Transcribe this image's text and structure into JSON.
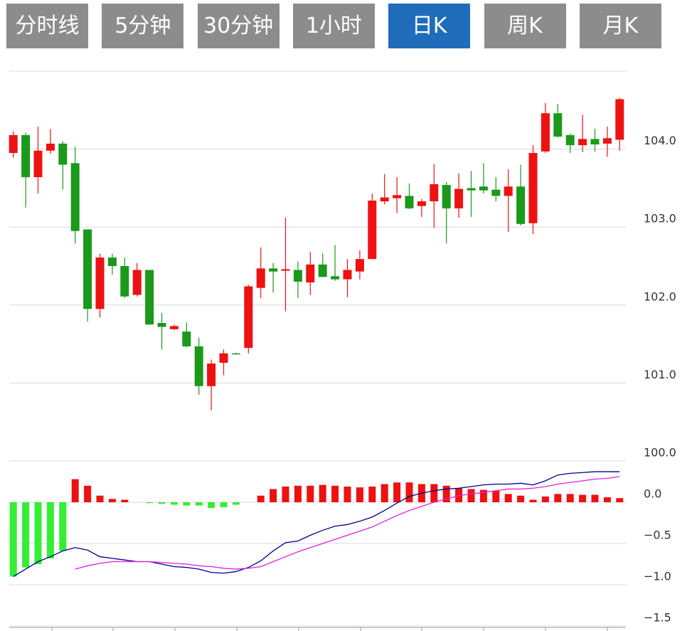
{
  "tabs": [
    "分时线",
    "5分钟",
    "30分钟",
    "1小时",
    "日K",
    "周K",
    "月K"
  ],
  "active_tab": 4,
  "chart_data": [
    {
      "type": "candlestick",
      "up_color": "#ee1111",
      "down_color": "#1a991a",
      "grid": true,
      "ylim": [
        100,
        105
      ],
      "yticks": [
        {
          "value": 100,
          "label": "100.0"
        },
        {
          "value": 101,
          "label": "101.0"
        },
        {
          "value": 102,
          "label": "102.0"
        },
        {
          "value": 103,
          "label": "103.0"
        },
        {
          "value": 104,
          "label": "104.0"
        }
      ],
      "open": [
        103.95,
        104.18,
        103.64,
        103.98,
        104.07,
        103.82,
        102.97,
        101.95,
        102.61,
        102.5,
        102.13,
        102.45,
        101.77,
        101.69,
        101.66,
        101.47,
        100.96,
        101.26,
        101.38,
        101.45,
        102.22,
        102.47,
        102.44,
        102.45,
        102.29,
        102.52,
        102.37,
        102.33,
        102.43,
        102.59,
        103.33,
        103.37,
        103.4,
        103.27,
        103.33,
        103.54,
        103.24,
        103.5,
        103.52,
        103.48,
        103.4,
        103.52,
        103.05,
        103.97,
        104.46,
        104.18,
        104.05,
        104.13,
        104.07,
        104.12
      ],
      "high": [
        104.23,
        104.21,
        104.29,
        104.26,
        104.1,
        104.03,
        102.97,
        102.66,
        102.66,
        102.61,
        102.54,
        102.45,
        101.9,
        101.75,
        101.78,
        101.58,
        101.3,
        101.43,
        101.39,
        102.26,
        102.74,
        102.54,
        103.12,
        102.56,
        102.68,
        102.66,
        102.77,
        102.59,
        102.7,
        103.43,
        103.68,
        103.64,
        103.56,
        103.36,
        103.81,
        103.58,
        103.69,
        103.72,
        103.82,
        103.64,
        103.74,
        103.8,
        104.05,
        104.59,
        104.58,
        104.2,
        104.44,
        104.26,
        104.29,
        104.66
      ],
      "low": [
        103.89,
        103.25,
        103.43,
        103.94,
        103.48,
        102.79,
        101.79,
        101.84,
        102.39,
        102.09,
        102.11,
        101.75,
        101.43,
        101.68,
        101.46,
        100.85,
        100.65,
        101.1,
        101.37,
        101.38,
        102.09,
        102.16,
        101.92,
        102.09,
        102.13,
        102.36,
        102.31,
        102.1,
        102.33,
        102.59,
        103.29,
        103.18,
        103.23,
        103.13,
        102.99,
        102.79,
        103.12,
        103.13,
        103.43,
        103.33,
        102.94,
        103.02,
        102.91,
        103.95,
        104.15,
        103.95,
        103.96,
        103.97,
        103.9,
        103.98
      ],
      "close": [
        104.18,
        103.64,
        103.98,
        104.07,
        103.8,
        102.95,
        101.95,
        102.61,
        102.5,
        102.11,
        102.45,
        101.75,
        101.72,
        101.73,
        101.47,
        100.96,
        101.25,
        101.38,
        101.37,
        102.24,
        102.47,
        102.43,
        102.46,
        102.3,
        102.52,
        102.36,
        102.33,
        102.45,
        102.59,
        103.34,
        103.38,
        103.41,
        103.24,
        103.33,
        103.55,
        103.24,
        103.49,
        103.47,
        103.47,
        103.4,
        103.52,
        103.04,
        103.95,
        104.46,
        104.16,
        104.05,
        104.13,
        104.06,
        104.14,
        104.64
      ]
    },
    {
      "type": "macd",
      "grid": true,
      "ylim": [
        -1.5,
        0.5
      ],
      "yticks": [
        {
          "value": 0,
          "label": "0.0"
        },
        {
          "value": -0.5,
          "label": "−0.5"
        },
        {
          "value": -1,
          "label": "−1.0"
        },
        {
          "value": -1.5,
          "label": "−1.5"
        }
      ],
      "bars": {
        "up_color": "#ee1111",
        "down_color": "#33ee33",
        "values": [
          -0.9,
          -0.79,
          -0.75,
          -0.68,
          -0.59,
          0.28,
          0.2,
          0.08,
          0.04,
          0.03,
          0,
          -0.01,
          -0.02,
          -0.03,
          -0.04,
          -0.04,
          -0.07,
          -0.06,
          -0.03,
          0,
          0.08,
          0.16,
          0.19,
          0.2,
          0.2,
          0.21,
          0.2,
          0.19,
          0.18,
          0.19,
          0.22,
          0.24,
          0.24,
          0.22,
          0.22,
          0.2,
          0.17,
          0.16,
          0.15,
          0.14,
          0.1,
          0.08,
          0.03,
          0.07,
          0.1,
          0.1,
          0.09,
          0.09,
          0.06,
          0.05
        ]
      },
      "lines": [
        {
          "color": "#00008b",
          "values": [
            -0.9,
            -0.81,
            -0.72,
            -0.66,
            -0.59,
            -0.55,
            -0.58,
            -0.66,
            -0.68,
            -0.7,
            -0.72,
            -0.72,
            -0.75,
            -0.78,
            -0.79,
            -0.81,
            -0.85,
            -0.86,
            -0.84,
            -0.79,
            -0.71,
            -0.59,
            -0.49,
            -0.47,
            -0.4,
            -0.34,
            -0.29,
            -0.27,
            -0.23,
            -0.18,
            -0.1,
            -0.01,
            0.07,
            0.11,
            0.14,
            0.16,
            0.17,
            0.19,
            0.21,
            0.22,
            0.22,
            0.23,
            0.21,
            0.26,
            0.33,
            0.35,
            0.36,
            0.37,
            0.37,
            0.37
          ]
        },
        {
          "color": "#e020e0",
          "values": [
            null,
            null,
            null,
            null,
            null,
            -0.81,
            -0.77,
            -0.74,
            -0.72,
            -0.72,
            -0.72,
            -0.72,
            -0.73,
            -0.74,
            -0.75,
            -0.77,
            -0.78,
            -0.8,
            -0.81,
            -0.8,
            -0.78,
            -0.72,
            -0.66,
            -0.6,
            -0.55,
            -0.5,
            -0.45,
            -0.4,
            -0.35,
            -0.3,
            -0.23,
            -0.16,
            -0.1,
            -0.05,
            0.0,
            0.04,
            0.08,
            0.1,
            0.12,
            0.14,
            0.16,
            0.16,
            0.17,
            0.19,
            0.22,
            0.24,
            0.26,
            0.28,
            0.29,
            0.31
          ]
        }
      ]
    }
  ]
}
